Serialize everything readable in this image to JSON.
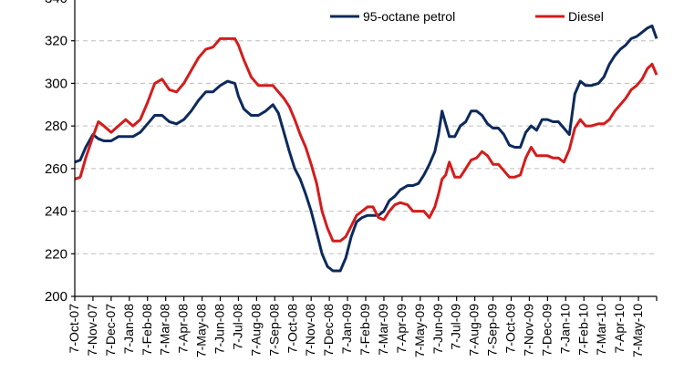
{
  "chart_data": {
    "type": "line",
    "title": "",
    "xlabel": "",
    "ylabel": "",
    "ylim": [
      200,
      340
    ],
    "yticks": [
      200,
      220,
      240,
      260,
      280,
      300,
      320,
      340
    ],
    "grid": "horizontal-dashed",
    "legend_position": "top-right",
    "x_labels": [
      "7-Oct-07",
      "7-Nov-07",
      "7-Dec-07",
      "7-Jan-08",
      "7-Feb-08",
      "7-Mar-08",
      "7-Apr-08",
      "7-May-08",
      "7-Jun-08",
      "7-Jul-08",
      "7-Aug-08",
      "7-Sep-08",
      "7-Oct-08",
      "7-Nov-08",
      "7-Dec-08",
      "7-Jan-09",
      "7-Feb-09",
      "7-Mar-09",
      "7-Apr-09",
      "7-May-09",
      "7-Jun-09",
      "7-Jul-09",
      "7-Aug-09",
      "7-Sep-09",
      "7-Oct-09",
      "7-Nov-09",
      "7-Dec-09",
      "7-Jan-10",
      "7-Feb-10",
      "7-Mar-10",
      "7-Apr-10",
      "7-May-10"
    ],
    "x_label_display": [
      "7-Oct-07",
      "7-Nov-07",
      "7-Dec-07",
      "7-Jan-08",
      "7-Feb-08",
      "7-Mar-08",
      "7-Apr-08",
      "7-May-08",
      "7-Jun-08",
      "7-Jul-08",
      "7-Aug-08",
      "7-Sep-08",
      "7-Oct-08",
      "7-Nov-08",
      "7-Dec-08",
      "7-Jan-09",
      "7-Feb-09",
      "7-Mar-09",
      "7-Apr-09",
      "7-May-09",
      "7-Jun-09",
      "7-Jul-09",
      "7-Aug-09",
      "7-Sep-09",
      "7-Oct-09",
      "7-Nov-09",
      "7-Dec-09",
      "7-Jan-10",
      "7-Feb-10",
      "7-Mar-10",
      "7-Apr-10",
      "7-May-10"
    ],
    "series": [
      {
        "name": "95-octane petrol",
        "color": "#0d2a5c",
        "points": [
          [
            0,
            263
          ],
          [
            0.3,
            264
          ],
          [
            0.6,
            270
          ],
          [
            1.0,
            276
          ],
          [
            1.3,
            274
          ],
          [
            1.6,
            273
          ],
          [
            2.0,
            273
          ],
          [
            2.4,
            275
          ],
          [
            2.8,
            275
          ],
          [
            3.2,
            275
          ],
          [
            3.6,
            277
          ],
          [
            4.0,
            281
          ],
          [
            4.4,
            285
          ],
          [
            4.8,
            285
          ],
          [
            5.2,
            282
          ],
          [
            5.6,
            281
          ],
          [
            6.0,
            283
          ],
          [
            6.4,
            287
          ],
          [
            6.8,
            292
          ],
          [
            7.2,
            296
          ],
          [
            7.6,
            296
          ],
          [
            8.0,
            299
          ],
          [
            8.4,
            301
          ],
          [
            8.8,
            300
          ],
          [
            9.0,
            294
          ],
          [
            9.3,
            288
          ],
          [
            9.7,
            285
          ],
          [
            10.1,
            285
          ],
          [
            10.5,
            287
          ],
          [
            10.9,
            290
          ],
          [
            11.2,
            286
          ],
          [
            11.5,
            277
          ],
          [
            11.8,
            268
          ],
          [
            12.1,
            260
          ],
          [
            12.4,
            255
          ],
          [
            12.7,
            248
          ],
          [
            13.0,
            240
          ],
          [
            13.3,
            230
          ],
          [
            13.6,
            220
          ],
          [
            13.9,
            214
          ],
          [
            14.2,
            212
          ],
          [
            14.6,
            212
          ],
          [
            14.9,
            218
          ],
          [
            15.2,
            228
          ],
          [
            15.5,
            235
          ],
          [
            15.8,
            237
          ],
          [
            16.1,
            238
          ],
          [
            16.4,
            238
          ],
          [
            16.7,
            238
          ],
          [
            17.0,
            240
          ],
          [
            17.3,
            245
          ],
          [
            17.6,
            247
          ],
          [
            17.9,
            250
          ],
          [
            18.3,
            252
          ],
          [
            18.6,
            252
          ],
          [
            18.9,
            253
          ],
          [
            19.2,
            257
          ],
          [
            19.5,
            262
          ],
          [
            19.8,
            268
          ],
          [
            20.0,
            276
          ],
          [
            20.2,
            287
          ],
          [
            20.4,
            281
          ],
          [
            20.6,
            275
          ],
          [
            20.9,
            275
          ],
          [
            21.2,
            280
          ],
          [
            21.5,
            282
          ],
          [
            21.8,
            287
          ],
          [
            22.1,
            287
          ],
          [
            22.4,
            285
          ],
          [
            22.7,
            281
          ],
          [
            23.0,
            279
          ],
          [
            23.3,
            279
          ],
          [
            23.6,
            276
          ],
          [
            23.9,
            271
          ],
          [
            24.2,
            270
          ],
          [
            24.5,
            270
          ],
          [
            24.8,
            277
          ],
          [
            25.1,
            280
          ],
          [
            25.4,
            278
          ],
          [
            25.7,
            283
          ],
          [
            26.0,
            283
          ],
          [
            26.3,
            282
          ],
          [
            26.6,
            282
          ],
          [
            26.9,
            279
          ],
          [
            27.2,
            276
          ],
          [
            27.5,
            295
          ],
          [
            27.8,
            301
          ],
          [
            28.1,
            299
          ],
          [
            28.4,
            299
          ],
          [
            28.8,
            300
          ],
          [
            29.1,
            303
          ],
          [
            29.4,
            309
          ],
          [
            29.7,
            313
          ],
          [
            30.0,
            316
          ],
          [
            30.3,
            318
          ],
          [
            30.6,
            321
          ],
          [
            30.9,
            322
          ],
          [
            31.2,
            324
          ],
          [
            31.5,
            326
          ],
          [
            31.75,
            327
          ],
          [
            32.0,
            321
          ]
        ]
      },
      {
        "name": "Diesel",
        "color": "#d41c1c",
        "points": [
          [
            0,
            255
          ],
          [
            0.3,
            256
          ],
          [
            0.6,
            265
          ],
          [
            1.0,
            275
          ],
          [
            1.3,
            282
          ],
          [
            1.6,
            280
          ],
          [
            2.0,
            277
          ],
          [
            2.4,
            280
          ],
          [
            2.8,
            283
          ],
          [
            3.2,
            280
          ],
          [
            3.6,
            283
          ],
          [
            4.0,
            291
          ],
          [
            4.4,
            300
          ],
          [
            4.8,
            302
          ],
          [
            5.2,
            297
          ],
          [
            5.6,
            296
          ],
          [
            6.0,
            300
          ],
          [
            6.4,
            306
          ],
          [
            6.8,
            312
          ],
          [
            7.2,
            316
          ],
          [
            7.6,
            317
          ],
          [
            8.0,
            321
          ],
          [
            8.4,
            321
          ],
          [
            8.8,
            321
          ],
          [
            9.0,
            318
          ],
          [
            9.3,
            311
          ],
          [
            9.7,
            303
          ],
          [
            10.1,
            299
          ],
          [
            10.5,
            299
          ],
          [
            10.9,
            299
          ],
          [
            11.2,
            296
          ],
          [
            11.5,
            293
          ],
          [
            11.8,
            289
          ],
          [
            12.1,
            283
          ],
          [
            12.4,
            276
          ],
          [
            12.7,
            270
          ],
          [
            13.0,
            262
          ],
          [
            13.3,
            253
          ],
          [
            13.6,
            240
          ],
          [
            13.9,
            232
          ],
          [
            14.2,
            226
          ],
          [
            14.6,
            226
          ],
          [
            14.9,
            228
          ],
          [
            15.2,
            233
          ],
          [
            15.5,
            238
          ],
          [
            15.8,
            240
          ],
          [
            16.1,
            242
          ],
          [
            16.4,
            242
          ],
          [
            16.7,
            237
          ],
          [
            17.0,
            236
          ],
          [
            17.3,
            240
          ],
          [
            17.6,
            243
          ],
          [
            17.9,
            244
          ],
          [
            18.3,
            243
          ],
          [
            18.6,
            240
          ],
          [
            18.9,
            240
          ],
          [
            19.2,
            240
          ],
          [
            19.5,
            237
          ],
          [
            19.8,
            242
          ],
          [
            20.0,
            248
          ],
          [
            20.2,
            255
          ],
          [
            20.4,
            257
          ],
          [
            20.6,
            263
          ],
          [
            20.9,
            256
          ],
          [
            21.2,
            256
          ],
          [
            21.5,
            260
          ],
          [
            21.8,
            264
          ],
          [
            22.1,
            265
          ],
          [
            22.4,
            268
          ],
          [
            22.7,
            266
          ],
          [
            23.0,
            262
          ],
          [
            23.3,
            262
          ],
          [
            23.6,
            259
          ],
          [
            23.9,
            256
          ],
          [
            24.2,
            256
          ],
          [
            24.5,
            257
          ],
          [
            24.8,
            265
          ],
          [
            25.1,
            270
          ],
          [
            25.4,
            266
          ],
          [
            25.7,
            266
          ],
          [
            26.0,
            266
          ],
          [
            26.3,
            265
          ],
          [
            26.6,
            265
          ],
          [
            26.9,
            263
          ],
          [
            27.2,
            269
          ],
          [
            27.5,
            279
          ],
          [
            27.8,
            283
          ],
          [
            28.1,
            280
          ],
          [
            28.4,
            280
          ],
          [
            28.8,
            281
          ],
          [
            29.1,
            281
          ],
          [
            29.4,
            283
          ],
          [
            29.7,
            287
          ],
          [
            30.0,
            290
          ],
          [
            30.3,
            293
          ],
          [
            30.6,
            297
          ],
          [
            30.9,
            299
          ],
          [
            31.2,
            302
          ],
          [
            31.5,
            307
          ],
          [
            31.75,
            309
          ],
          [
            32.0,
            304
          ]
        ]
      }
    ]
  }
}
